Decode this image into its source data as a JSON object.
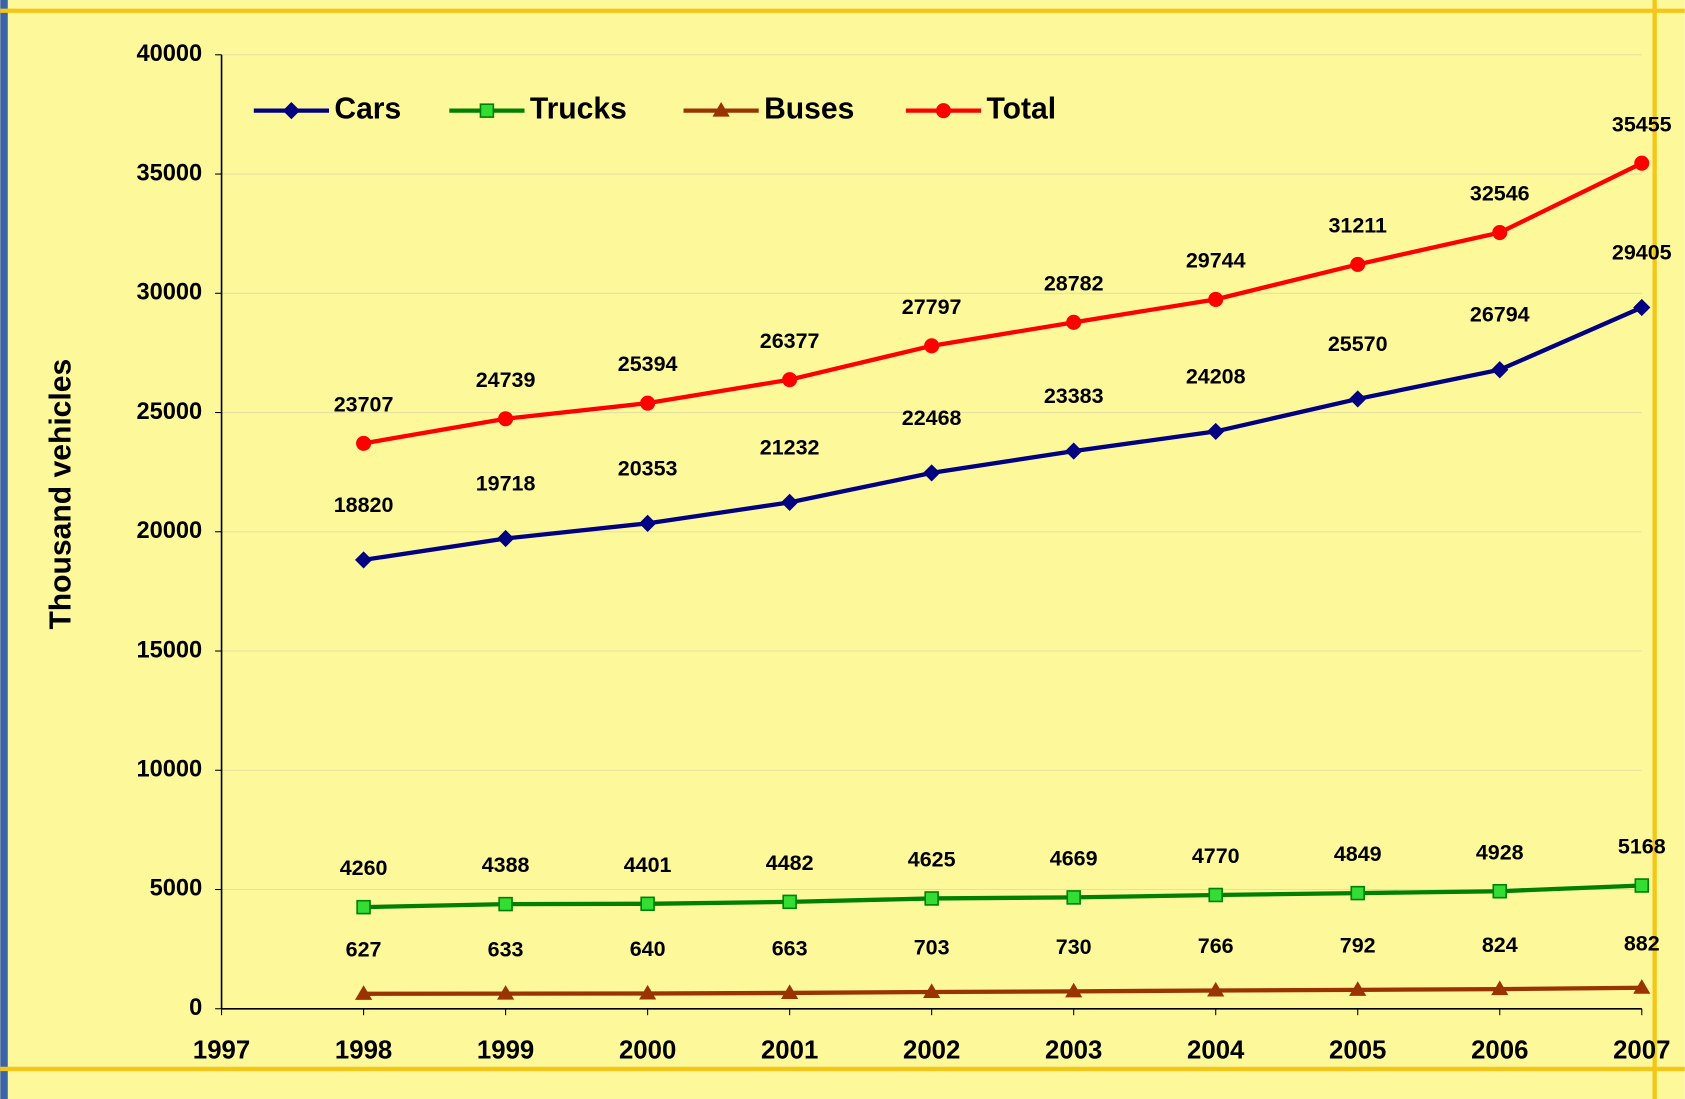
{
  "chart_data": {
    "type": "line",
    "y_label": "Thousand vehicles",
    "x": [
      1998,
      1999,
      2000,
      2001,
      2002,
      2003,
      2004,
      2005,
      2006,
      2007
    ],
    "xlim": [
      1997,
      2007
    ],
    "xticks": [
      1997,
      1998,
      1999,
      2000,
      2001,
      2002,
      2003,
      2004,
      2005,
      2006,
      2007
    ],
    "ylim": [
      0,
      40000
    ],
    "yticks": [
      0,
      5000,
      10000,
      15000,
      20000,
      25000,
      30000,
      35000,
      40000
    ],
    "grid": true,
    "legend": "top-left",
    "series": [
      {
        "name": "Cars",
        "color": "#000080",
        "marker": "diamond",
        "values": [
          18820,
          19718,
          20353,
          21232,
          22468,
          23383,
          24208,
          25570,
          26794,
          29405
        ]
      },
      {
        "name": "Trucks",
        "color": "#008000",
        "marker": "square",
        "values": [
          4260,
          4388,
          4401,
          4482,
          4625,
          4669,
          4770,
          4849,
          4928,
          5168
        ]
      },
      {
        "name": "Buses",
        "color": "#993300",
        "marker": "triangle",
        "values": [
          627,
          633,
          640,
          663,
          703,
          730,
          766,
          792,
          824,
          882
        ]
      },
      {
        "name": "Total",
        "color": "#ff0000",
        "marker": "circle",
        "values": [
          23707,
          24739,
          25394,
          26377,
          27797,
          28782,
          29744,
          31211,
          32546,
          35455
        ]
      }
    ]
  }
}
